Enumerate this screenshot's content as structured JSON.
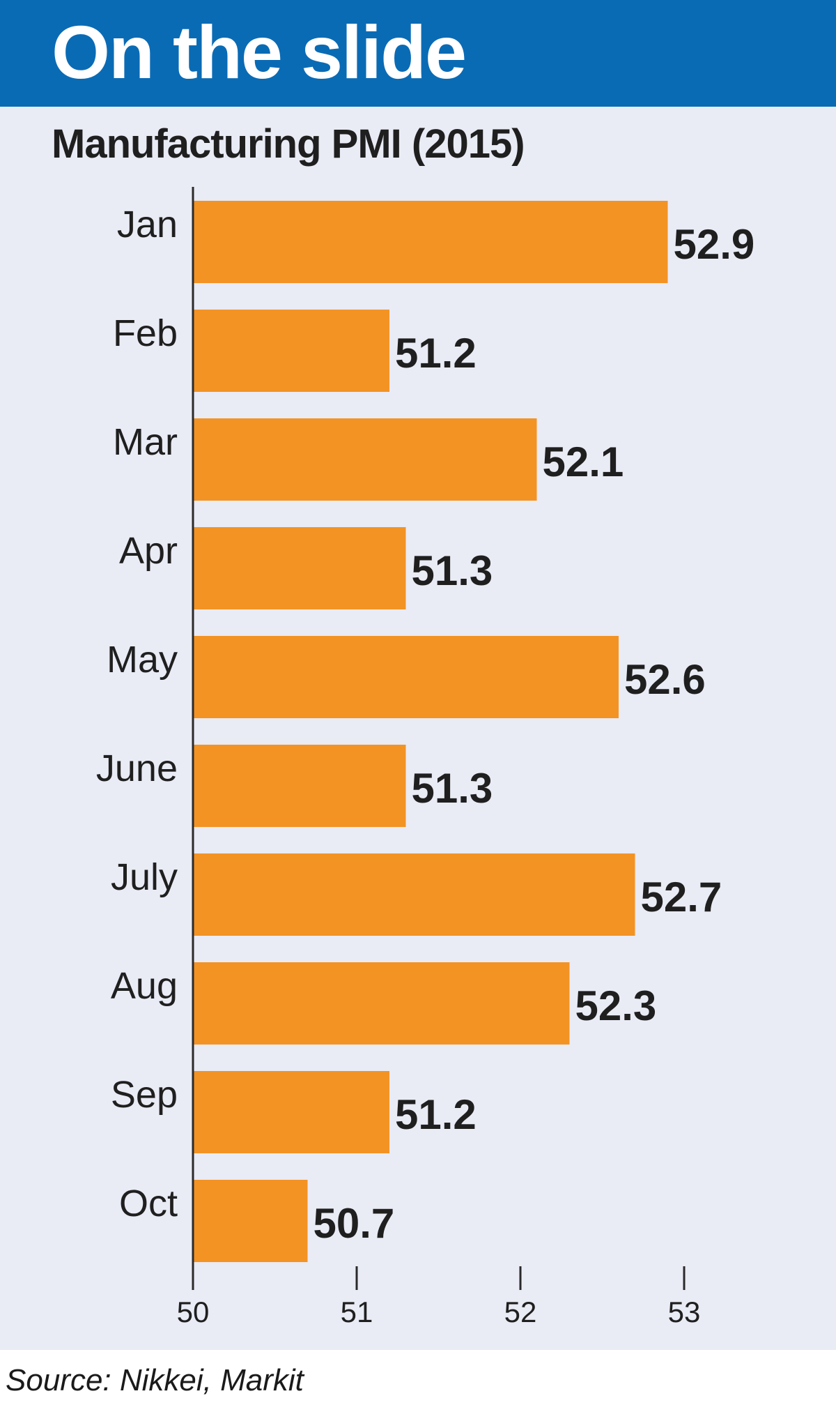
{
  "header": {
    "title": "On the slide"
  },
  "source_note": "Source: Nikkei, Markit",
  "colors": {
    "banner": "#0a6bb5",
    "bar": "#f39324",
    "panel": "#e9ebf5"
  },
  "chart_data": {
    "type": "bar",
    "orientation": "horizontal",
    "title": "Manufacturing PMI (2015)",
    "categories": [
      "Jan",
      "Feb",
      "Mar",
      "Apr",
      "May",
      "June",
      "July",
      "Aug",
      "Sep",
      "Oct"
    ],
    "values": [
      52.9,
      51.2,
      52.1,
      51.3,
      52.6,
      51.3,
      52.7,
      52.3,
      51.2,
      50.7
    ],
    "value_labels": [
      "52.9",
      "51.2",
      "52.1",
      "51.3",
      "52.6",
      "51.3",
      "52.7",
      "52.3",
      "51.2",
      "50.7"
    ],
    "xlim": [
      50,
      53
    ],
    "xticks": [
      "50",
      "51",
      "52",
      "53"
    ],
    "xlabel": "",
    "ylabel": "",
    "grid": false,
    "legend": "none"
  }
}
